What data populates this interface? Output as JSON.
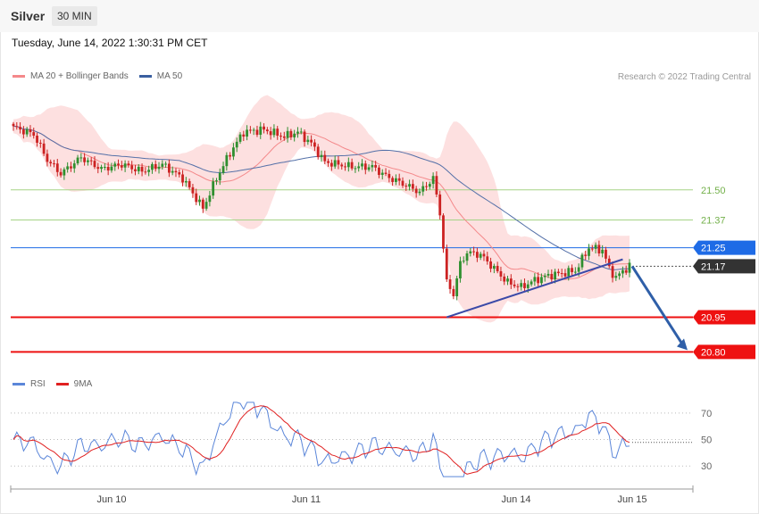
{
  "header": {
    "title": "Silver",
    "interval": "30 MIN"
  },
  "timestamp": "Tuesday, June 14, 2022 1:30:31 PM CET",
  "legend": {
    "items": [
      {
        "label": "MA 20 + Bollinger Bands",
        "color": "#f4888a"
      },
      {
        "label": "MA 50",
        "color": "#3a5fa0"
      }
    ],
    "copyright": "Research © 2022 Trading Central"
  },
  "rsi_legend": {
    "items": [
      {
        "label": "RSI",
        "color": "#5b86d9"
      },
      {
        "label": "9MA",
        "color": "#e02020"
      }
    ]
  },
  "chart_data": [
    {
      "type": "candlestick",
      "instrument": "Silver",
      "timeframe": "30 MIN",
      "x_labels": [
        "Jun 10",
        "Jun 11",
        "Jun 14",
        "Jun 15"
      ],
      "y_range": [
        20.74,
        21.95
      ],
      "levels": [
        {
          "value": 21.5,
          "label": "21.50",
          "style": "resistance",
          "color": "#a5d386"
        },
        {
          "value": 21.37,
          "label": "21.37",
          "style": "resistance",
          "color": "#a5d386"
        },
        {
          "value": 21.25,
          "label": "21.25",
          "style": "pivot",
          "color": "#1e6be6"
        },
        {
          "value": 21.17,
          "label": "21.17",
          "style": "last-price",
          "color": "#333333"
        },
        {
          "value": 20.95,
          "label": "20.95",
          "style": "support",
          "color": "#ee1111"
        },
        {
          "value": 20.8,
          "label": "20.80",
          "style": "support",
          "color": "#ee1111"
        }
      ],
      "trendline": {
        "from_close": 20.95,
        "to_close": 21.2
      },
      "forecast_arrow": {
        "from": 21.17,
        "to": 20.8
      },
      "colors": {
        "up": "#2f8f2f",
        "down": "#cc2222",
        "bands": "#fde0e0"
      }
    },
    {
      "type": "line",
      "name": "RSI",
      "y_ticks": [
        70,
        50,
        30
      ],
      "ylim": [
        18,
        82
      ],
      "series": [
        {
          "name": "RSI",
          "color": "#5b86d9"
        },
        {
          "name": "9MA",
          "color": "#e02020"
        }
      ]
    }
  ]
}
